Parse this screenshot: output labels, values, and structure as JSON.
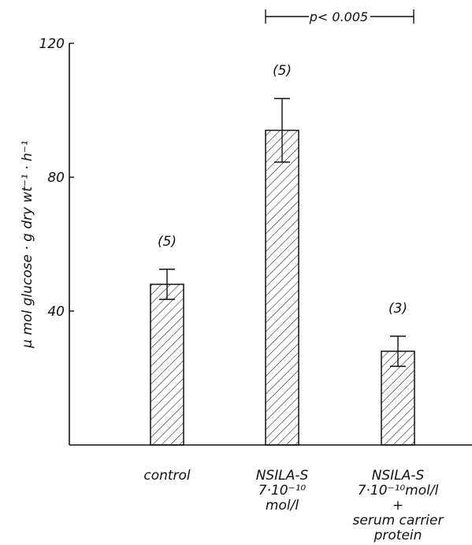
{
  "chart_data": {
    "type": "bar",
    "categories": [
      [
        "control"
      ],
      [
        "NSILA-S",
        "7·10⁻¹⁰",
        "mol/l"
      ],
      [
        "NSILA-S",
        "7·10⁻¹⁰mol/l",
        "+",
        "serum carrier",
        "protein"
      ]
    ],
    "values": [
      48,
      94,
      28
    ],
    "errors": [
      4.5,
      9.5,
      4.5
    ],
    "n_labels": [
      "(5)",
      "(5)",
      "(3)"
    ],
    "ylabel": "µ mol glucose · g dry wt⁻¹ · h⁻¹",
    "ylim": [
      0,
      120
    ],
    "yticks": [
      40,
      80,
      120
    ],
    "significance": {
      "text": "p< 0.005"
    },
    "fill_pattern": "diagonal-hatch",
    "grid": false,
    "legend": "none",
    "colors": {
      "ink": "#111111",
      "background": "#ffffff"
    }
  }
}
